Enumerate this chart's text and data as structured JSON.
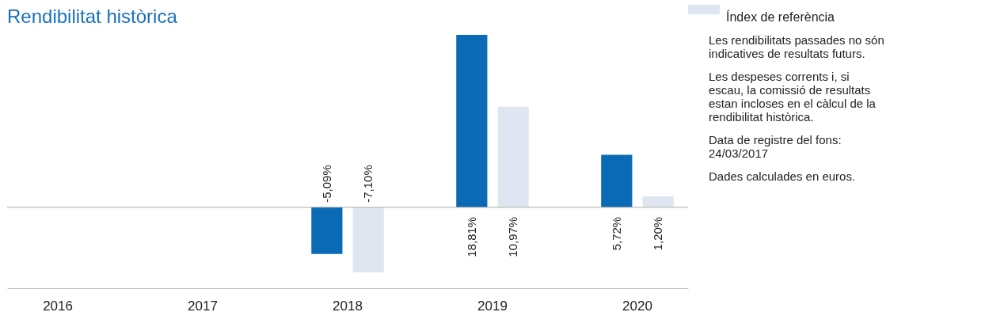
{
  "chart_data": {
    "type": "bar",
    "title": "Rendibilitat històrica",
    "categories": [
      "2016",
      "2017",
      "2018",
      "2019",
      "2020"
    ],
    "series": [
      {
        "color": "#0a6ab5",
        "values": [
          null,
          null,
          -5.09,
          18.81,
          5.72
        ],
        "value_labels": [
          null,
          null,
          "-5,09%",
          "18,81%",
          "5,72%"
        ]
      },
      {
        "name": "Índex de referència",
        "color": "#dfe6f1",
        "values": [
          null,
          null,
          -7.1,
          10.97,
          1.2
        ],
        "value_labels": [
          null,
          null,
          "-7,10%",
          "10,97%",
          "1,20%"
        ]
      }
    ],
    "relative": false,
    "legend": "top right",
    "annotations": [
      "Les rendibilitats passades no són indicatives de resultats futurs.",
      "Les despeses corrents i, si escau, la comissió de resultats estan incloses en el càlcul de la rendibilitat històrica.",
      "Data de registre del fons: 24/03/2017",
      "Dades calculades en euros."
    ]
  }
}
